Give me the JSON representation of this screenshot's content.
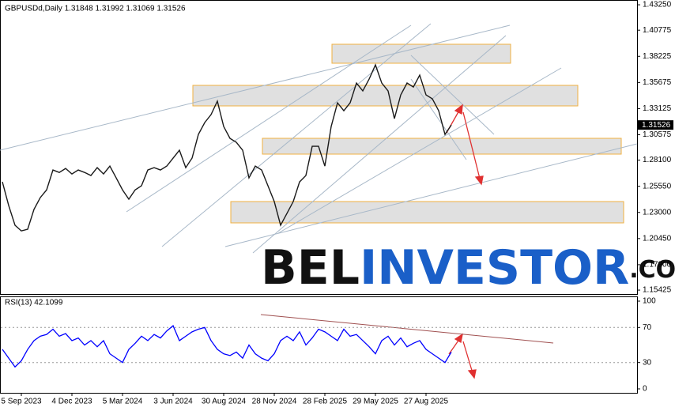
{
  "chart_data": [
    {
      "type": "line",
      "title": "GBPUSDd,Daily 1.31848 1.31992 1.31069 1.31526",
      "color": "#1a1a1a",
      "values": [
        1.2598,
        1.2367,
        1.2175,
        1.212,
        1.2136,
        1.233,
        1.2445,
        1.252,
        1.2714,
        1.269,
        1.2729,
        1.2675,
        1.2714,
        1.269,
        1.266,
        1.2737,
        1.2675,
        1.2752,
        1.2637,
        1.252,
        1.2429,
        1.252,
        1.256,
        1.2714,
        1.2737,
        1.2714,
        1.2752,
        1.283,
        1.2907,
        1.2737,
        1.283,
        1.3061,
        1.3176,
        1.3254,
        1.3385,
        1.3138,
        1.3022,
        1.2984,
        1.2907,
        1.2637,
        1.2752,
        1.2714,
        1.256,
        1.2406,
        1.2175,
        1.229,
        1.2406,
        1.2598,
        1.266,
        1.2945,
        1.2945,
        1.2752,
        1.3138,
        1.3369,
        1.3292,
        1.3369,
        1.3562,
        1.3485,
        1.36,
        1.3739,
        1.3562,
        1.3485,
        1.3215,
        1.3446,
        1.3562,
        1.3523,
        1.3639,
        1.3446,
        1.3408,
        1.3292,
        1.3061,
        1.31526
      ],
      "ylim": [
        1.1512,
        1.4364
      ],
      "yticks": [
        {
          "value": 1.4325,
          "label": "1.43250"
        },
        {
          "value": 1.40775,
          "label": "1.40775"
        },
        {
          "value": 1.38225,
          "label": "1.38225"
        },
        {
          "value": 1.35675,
          "label": "1.35675"
        },
        {
          "value": 1.33125,
          "label": "1.33125"
        },
        {
          "value": 1.30575,
          "label": "1.30575"
        },
        {
          "value": 1.281,
          "label": "1.28100"
        },
        {
          "value": 1.2555,
          "label": "1.25550"
        },
        {
          "value": 1.23,
          "label": "1.23000"
        },
        {
          "value": 1.2045,
          "label": "1.20450"
        },
        {
          "value": 1.179,
          "label": "1.17900"
        },
        {
          "value": 1.15425,
          "label": "1.15425"
        }
      ],
      "price_tag": {
        "value": 1.31526,
        "label": "1.31526"
      },
      "watermark": [
        "BEL",
        "INVESTOR",
        ".COM"
      ]
    },
    {
      "type": "line",
      "title": "RSI(13) 42.1099",
      "color": "#0000ff",
      "categories": [
        null,
        null,
        null,
        "5 Sep 2023",
        null,
        null,
        null,
        null,
        null,
        null,
        null,
        "4 Dec 2023",
        null,
        null,
        null,
        null,
        null,
        null,
        null,
        "5 Mar 2024",
        null,
        null,
        null,
        null,
        null,
        null,
        null,
        "3 Jun 2024",
        null,
        null,
        null,
        null,
        null,
        null,
        null,
        "30 Aug 2024",
        null,
        null,
        null,
        null,
        null,
        null,
        null,
        "28 Nov 2024",
        null,
        null,
        null,
        null,
        null,
        null,
        null,
        "28 Feb 2025",
        null,
        null,
        null,
        null,
        null,
        null,
        null,
        "29 May 2025",
        null,
        null,
        null,
        null,
        null,
        null,
        null,
        "27 Aug 2025",
        null,
        null,
        null,
        null
      ],
      "values": [
        45,
        35,
        25,
        32,
        45,
        55,
        60,
        62,
        68,
        60,
        63,
        55,
        58,
        50,
        55,
        48,
        55,
        40,
        35,
        30,
        45,
        52,
        60,
        55,
        62,
        58,
        66,
        72,
        55,
        60,
        65,
        68,
        70,
        55,
        45,
        40,
        38,
        42,
        35,
        50,
        40,
        35,
        32,
        40,
        55,
        60,
        55,
        65,
        50,
        58,
        68,
        65,
        60,
        55,
        68,
        60,
        62,
        55,
        48,
        40,
        55,
        60,
        50,
        58,
        48,
        52,
        55,
        45,
        40,
        35,
        30,
        42
      ],
      "ylim": [
        -4.5,
        104.5
      ],
      "yticks": [
        0,
        30,
        70,
        100
      ]
    }
  ]
}
